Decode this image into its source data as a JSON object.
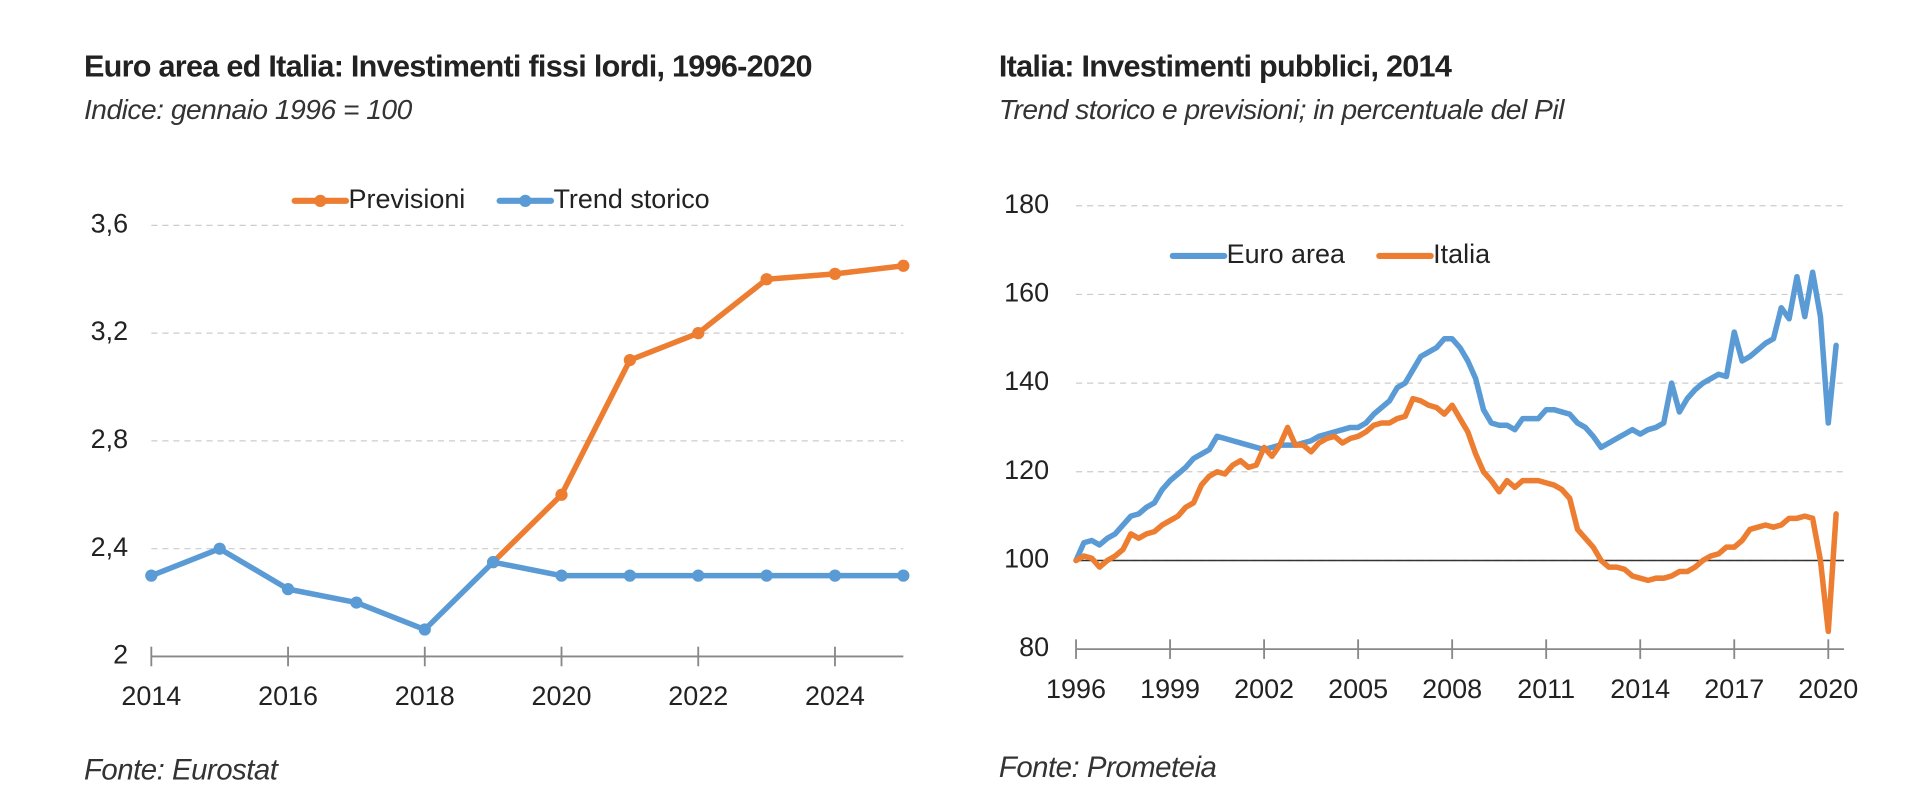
{
  "chart_data": [
    {
      "type": "line",
      "title": "Euro area ed Italia: Investimenti fissi lordi, 1996-2020",
      "subtitle": "Indice: gennaio 1996 = 100",
      "source": "Fonte: Eurostat",
      "x": [
        2014,
        2015,
        2016,
        2017,
        2018,
        2019,
        2020,
        2021,
        2022,
        2023,
        2024,
        2025
      ],
      "series": [
        {
          "name": "Previsioni",
          "color": "#ed7d31",
          "values": [
            null,
            null,
            null,
            null,
            null,
            2.35,
            2.6,
            3.1,
            3.2,
            3.4,
            3.42,
            3.45
          ]
        },
        {
          "name": "Trend storico",
          "color": "#5b9bd5",
          "values": [
            2.3,
            2.4,
            2.25,
            2.2,
            2.1,
            2.35,
            2.3,
            2.3,
            2.3,
            2.3,
            2.3,
            2.3
          ]
        }
      ],
      "markers": true,
      "xlim": [
        2014,
        2025
      ],
      "xticks": [
        2014,
        2016,
        2018,
        2020,
        2022,
        2024
      ],
      "ylim": [
        2,
        3.6
      ],
      "yticks": [
        2,
        {
          "value": 2.4,
          "label": "2,4"
        },
        {
          "value": 2.8,
          "label": "2,8"
        },
        {
          "value": 3.2,
          "label": "3,2"
        },
        {
          "value": 3.6,
          "label": "3,6"
        }
      ],
      "grid": true,
      "legend": "top"
    },
    {
      "type": "line",
      "title": "Italia: Investimenti pubblici, 2014",
      "subtitle": "Trend storico e previsioni; in percentuale del Pil",
      "source": "Fonte: Prometeia",
      "x": [
        1996,
        1996.25,
        1996.5,
        1996.75,
        1997,
        1997.25,
        1997.5,
        1997.75,
        1998,
        1998.25,
        1998.5,
        1998.75,
        1999,
        1999.25,
        1999.5,
        1999.75,
        2000,
        2000.25,
        2000.5,
        2000.75,
        2001,
        2001.25,
        2001.5,
        2001.75,
        2002,
        2002.25,
        2002.5,
        2002.75,
        2003,
        2003.25,
        2003.5,
        2003.75,
        2004,
        2004.25,
        2004.5,
        2004.75,
        2005,
        2005.25,
        2005.5,
        2005.75,
        2006,
        2006.25,
        2006.5,
        2006.75,
        2007,
        2007.25,
        2007.5,
        2007.75,
        2008,
        2008.25,
        2008.5,
        2008.75,
        2009,
        2009.25,
        2009.5,
        2009.75,
        2010,
        2010.25,
        2010.5,
        2010.75,
        2011,
        2011.25,
        2011.5,
        2011.75,
        2012,
        2012.25,
        2012.5,
        2012.75,
        2013,
        2013.25,
        2013.5,
        2013.75,
        2014,
        2014.25,
        2014.5,
        2014.75,
        2015,
        2015.25,
        2015.5,
        2015.75,
        2016,
        2016.25,
        2016.5,
        2016.75,
        2017,
        2017.25,
        2017.5,
        2017.75,
        2018,
        2018.25,
        2018.5,
        2018.75,
        2019,
        2019.25,
        2019.5,
        2019.75,
        2020,
        2020.25
      ],
      "series": [
        {
          "name": "Euro area",
          "color": "#5b9bd5",
          "values": [
            100,
            104,
            104.5,
            103.5,
            105,
            106,
            108,
            110,
            110.5,
            112,
            113,
            116,
            118,
            119.5,
            121,
            123,
            124,
            125,
            128,
            127.5,
            127,
            126.5,
            126,
            125.5,
            125,
            125.5,
            126,
            126,
            126,
            126.5,
            127,
            128,
            128.5,
            129,
            129.5,
            130,
            130,
            131,
            133,
            134.5,
            136,
            139,
            140,
            143,
            146,
            147,
            148,
            150,
            150,
            148,
            145,
            141,
            134,
            131,
            130.5,
            130.5,
            129.5,
            132,
            132,
            132,
            134,
            134,
            133.5,
            133,
            131,
            130,
            128,
            125.5,
            126.5,
            127.5,
            128.5,
            129.5,
            128.5,
            129.5,
            130,
            131,
            140,
            133.5,
            136.5,
            138.5,
            140,
            141,
            142,
            141.5,
            151.5,
            145,
            146,
            147.5,
            149,
            150,
            157,
            154.5,
            164,
            155,
            165,
            155,
            131,
            148.5
          ]
        },
        {
          "name": "Italia",
          "color": "#ed7d31",
          "values": [
            100,
            101,
            100.5,
            98.5,
            100,
            101,
            102.5,
            106,
            105,
            106,
            106.5,
            108,
            109,
            110,
            112,
            113,
            117,
            119,
            120,
            119.5,
            121.5,
            122.5,
            121,
            121.5,
            125.5,
            123.5,
            126,
            130,
            126,
            126,
            124.5,
            126.5,
            127.5,
            128,
            126.5,
            127.5,
            128,
            129,
            130.5,
            131,
            131,
            132,
            132.5,
            136.5,
            136,
            135,
            134.5,
            133,
            135,
            132,
            129,
            124,
            120,
            118,
            115.5,
            118,
            116.5,
            118,
            118,
            118,
            117.5,
            117,
            116,
            114,
            107,
            105,
            103,
            100,
            98.5,
            98.5,
            98,
            96.5,
            96,
            95.5,
            96,
            96,
            96.5,
            97.5,
            97.5,
            98.5,
            100,
            101,
            101.5,
            103,
            103,
            104.5,
            107,
            107.5,
            108,
            107.5,
            108,
            109.5,
            109.5,
            110,
            109.5,
            100,
            84,
            110.5
          ]
        }
      ],
      "markers": false,
      "baseline": 100,
      "xlim": [
        1996,
        2020.5
      ],
      "xticks": [
        1996,
        1999,
        2002,
        2005,
        2008,
        2011,
        2014,
        2017,
        2020
      ],
      "ylim": [
        80,
        180
      ],
      "yticks": [
        80,
        100,
        120,
        140,
        160,
        180
      ],
      "grid": true,
      "legend": "top"
    }
  ]
}
